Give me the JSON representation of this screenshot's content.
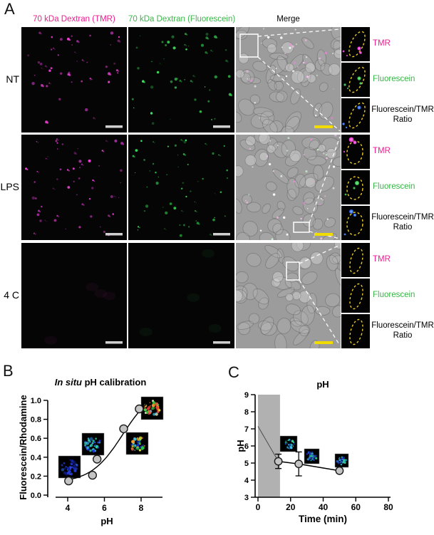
{
  "panelA": {
    "label": "A",
    "column_headers": [
      {
        "label": "70 kDa Dextran (TMR)",
        "color": "#EC1E8F"
      },
      {
        "label": "70 kDa Dextran (Fluorescein)",
        "color": "#3CB54A"
      },
      {
        "label": "Merge",
        "color": "#000000"
      }
    ],
    "rows": [
      {
        "label": "NT",
        "puncta_density": 0.85,
        "puncta_bias_top": true
      },
      {
        "label": "LPS",
        "puncta_density": 1.0,
        "puncta_bias_top": false
      },
      {
        "label": "4 C",
        "puncta_density": 0,
        "puncta_bias_top": false
      }
    ],
    "inset_labels": [
      {
        "lines": [
          "TMR"
        ],
        "color": "#EC1E8F"
      },
      {
        "lines": [
          "Fluorescein"
        ],
        "color": "#3CB54A"
      },
      {
        "lines": [
          "Fluorescein/TMR",
          "Ratio"
        ],
        "color": "#000000"
      }
    ],
    "channel_colors": {
      "tmr_bright": "#F741DF",
      "tmr_dim": "#A62BA0",
      "fluo_bright": "#3BE65A",
      "fluo_dim": "#1F8A33",
      "outline_yellow": "#E8C928",
      "scalebar_gray": "#CFCFCF",
      "scalebar_yellow": "#F2DC00"
    }
  },
  "panelB": {
    "label": "B"
  },
  "panelC": {
    "label": "C"
  },
  "chart_data": [
    {
      "id": "B",
      "type": "scatter",
      "title": "In situ pH calibration",
      "title_italic_prefix": "In situ",
      "title_rest": " pH calibration",
      "xlabel": "pH",
      "ylabel": "Fluorescein/Rhodamine",
      "xlim": [
        3.3,
        9.2
      ],
      "ylim": [
        0,
        1
      ],
      "xticks": [
        4,
        6,
        8
      ],
      "yticks": [
        "0.0",
        "0.2",
        "0.4",
        "0.6",
        "0.8",
        "1.0"
      ],
      "grid": false,
      "legend": null,
      "marker": {
        "shape": "circle",
        "fill": "#C4C4C4",
        "stroke": "#1A1A1A"
      },
      "points": [
        {
          "x": 4.05,
          "y": 0.15
        },
        {
          "x": 5.35,
          "y": 0.21
        },
        {
          "x": 5.6,
          "y": 0.38
        },
        {
          "x": 7.05,
          "y": 0.7
        },
        {
          "x": 7.9,
          "y": 0.91
        }
      ],
      "fit_curve": {
        "type": "sigmoid",
        "bottom": 0.13,
        "top": 1.15,
        "ph50": 7.0,
        "slope": 0.5,
        "x_start": 4.05,
        "x_end": 8.35
      }
    },
    {
      "id": "C",
      "type": "line",
      "title": "pH",
      "xlabel": "Time (min)",
      "ylabel": "pH",
      "xlim": [
        0,
        80
      ],
      "ylim": [
        3,
        9
      ],
      "xticks": [
        0,
        20,
        40,
        60,
        80
      ],
      "yticks": [
        3,
        4,
        5,
        6,
        7,
        8,
        9
      ],
      "grid": false,
      "legend": null,
      "shaded_region": {
        "x0": 0,
        "x1": 13.5,
        "color": "#B1B1B1"
      },
      "marker": {
        "shape": "circle",
        "fill": "#C4C4C4",
        "stroke": "#1A1A1A"
      },
      "line_start": {
        "x": 0,
        "y": 7.15
      },
      "points": [
        {
          "x": 12.5,
          "y": 5.1,
          "err": 0.42
        },
        {
          "x": 25,
          "y": 4.95,
          "err": 0.7
        },
        {
          "x": 50,
          "y": 4.55,
          "err": 0.15
        }
      ]
    }
  ]
}
